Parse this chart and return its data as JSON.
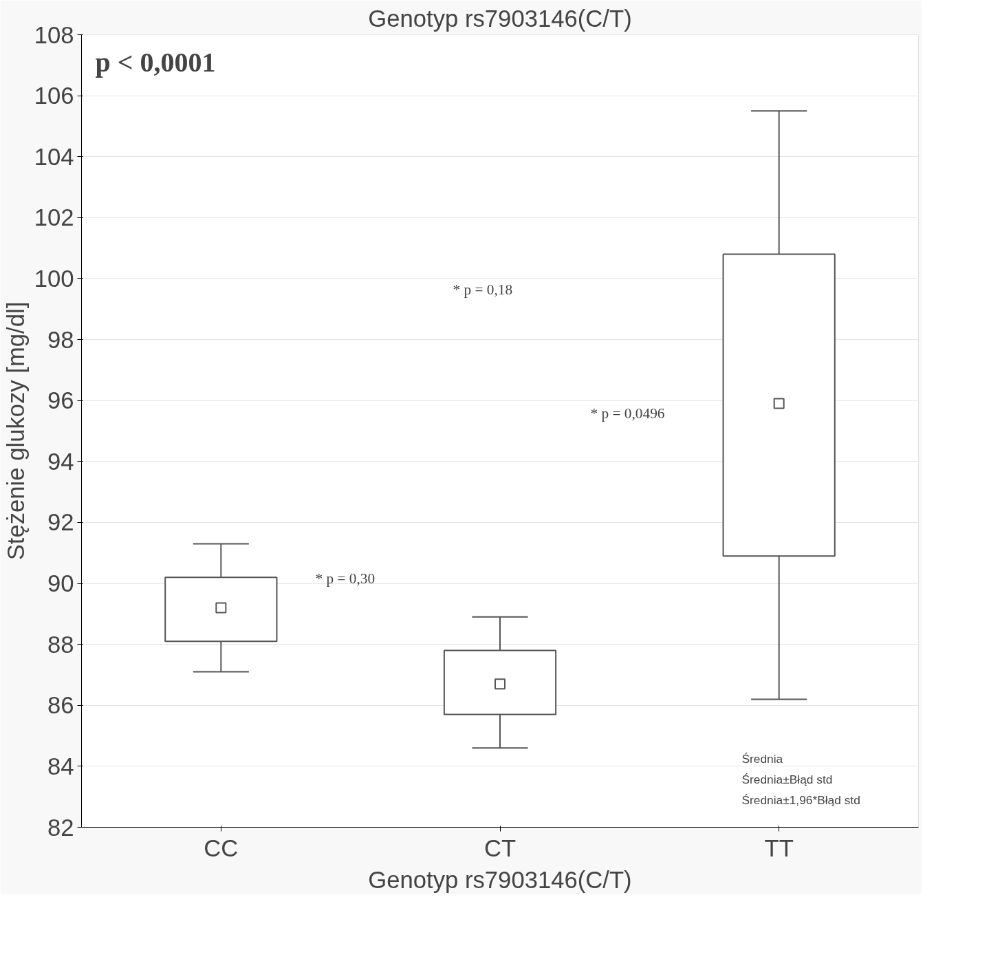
{
  "chart_data": {
    "type": "box",
    "title": "Genotyp rs7903146(C/T)",
    "xlabel": "Genotyp rs7903146(C/T)",
    "ylabel": "Stężenie glukozy [mg/dl]",
    "categories": [
      "CC",
      "CT",
      "TT"
    ],
    "boxes": [
      {
        "low": 87.1,
        "q1": 88.1,
        "median": 89.2,
        "q3": 90.2,
        "high": 91.3
      },
      {
        "low": 84.6,
        "q1": 85.7,
        "median": 86.7,
        "q3": 87.8,
        "high": 88.9
      },
      {
        "low": 86.2,
        "q1": 90.9,
        "median": 95.9,
        "q3": 100.8,
        "high": 105.5
      }
    ],
    "color": "#555555",
    "ylim": [
      82,
      108
    ],
    "yticks": [
      82,
      84,
      86,
      88,
      90,
      92,
      94,
      96,
      98,
      100,
      102,
      104,
      106,
      108
    ],
    "grid": "y",
    "annotations": [
      "p < 0,0001",
      "* p = 0,18",
      "* p = 0,30",
      "* p = 0,0496",
      "Średnia",
      "Średnia±Błąd std",
      "Średnia±1,96*Błąd std"
    ]
  }
}
